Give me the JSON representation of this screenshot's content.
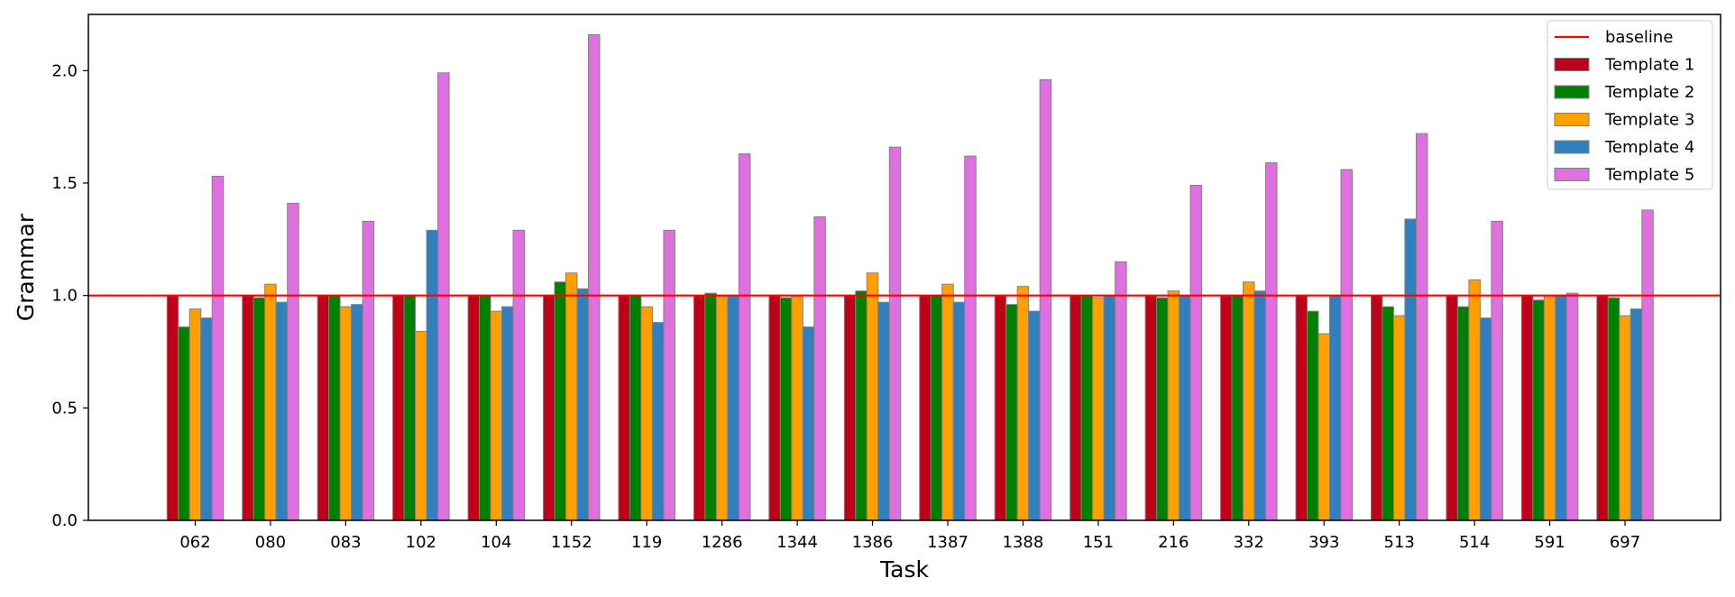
{
  "chart_data": {
    "type": "bar",
    "xlabel": "Task",
    "ylabel": "Grammar",
    "ylim": [
      0,
      2.25
    ],
    "yticks": [
      "0.0",
      "0.5",
      "1.0",
      "1.5",
      "2.0"
    ],
    "categories": [
      "062",
      "080",
      "083",
      "102",
      "104",
      "1152",
      "119",
      "1286",
      "1344",
      "1386",
      "1387",
      "1388",
      "151",
      "216",
      "332",
      "393",
      "513",
      "514",
      "591",
      "697"
    ],
    "baseline": {
      "name": "baseline",
      "value": 1.0,
      "color": "#ff0000"
    },
    "legend_position": "top-right",
    "grid": false,
    "series": [
      {
        "name": "Template 1",
        "color": "#c00018",
        "values": [
          1.0,
          1.0,
          1.0,
          1.0,
          1.0,
          1.0,
          1.0,
          1.0,
          1.0,
          1.0,
          1.0,
          1.0,
          1.0,
          1.0,
          1.0,
          1.0,
          1.0,
          1.0,
          1.0,
          1.0
        ]
      },
      {
        "name": "Template 2",
        "color": "#008000",
        "values": [
          0.86,
          0.99,
          1.0,
          1.0,
          1.0,
          1.06,
          1.0,
          1.01,
          0.99,
          1.02,
          1.0,
          0.96,
          1.0,
          0.99,
          1.0,
          0.93,
          0.95,
          0.95,
          0.98,
          0.99
        ]
      },
      {
        "name": "Template 3",
        "color": "#ffa000",
        "values": [
          0.94,
          1.05,
          0.95,
          0.84,
          0.93,
          1.1,
          0.95,
          1.0,
          1.0,
          1.1,
          1.05,
          1.04,
          0.99,
          1.02,
          1.06,
          0.83,
          0.91,
          1.07,
          1.0,
          0.91
        ]
      },
      {
        "name": "Template 4",
        "color": "#3080c0",
        "values": [
          0.9,
          0.97,
          0.96,
          1.29,
          0.95,
          1.03,
          0.88,
          1.0,
          0.86,
          0.97,
          0.97,
          0.93,
          1.0,
          1.0,
          1.02,
          1.0,
          1.34,
          0.9,
          1.0,
          0.94
        ]
      },
      {
        "name": "Template 5",
        "color": "#e070e0",
        "values": [
          1.53,
          1.41,
          1.33,
          1.99,
          1.29,
          2.16,
          1.29,
          1.63,
          1.35,
          1.66,
          1.62,
          1.96,
          1.15,
          1.49,
          1.59,
          1.56,
          1.72,
          1.33,
          1.01,
          1.38
        ]
      }
    ]
  }
}
